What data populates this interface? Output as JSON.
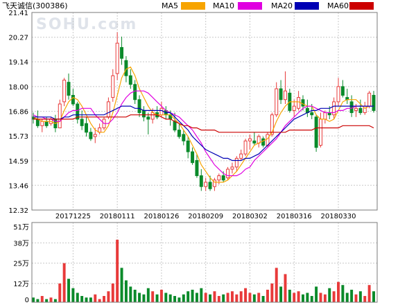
{
  "header": {
    "title": "飞天诚信(300386)"
  },
  "watermark": "SOHU.com",
  "colors": {
    "up": "#e83a3a",
    "down": "#0a8a2a",
    "grid": "#c8c8c8",
    "frame": "#7a7a7a",
    "ma5": "#f7a400",
    "ma10": "#e000e0",
    "ma20": "#0000b4",
    "ma60": "#cc0000"
  },
  "chart_data": [
    {
      "type": "candlestick",
      "title": "飞天诚信(300386)",
      "y_ticks": [
        "21.41",
        "20.27",
        "19.14",
        "18.00",
        "16.86",
        "15.73",
        "14.59",
        "13.46",
        "12.32"
      ],
      "ylim": [
        12.32,
        21.41
      ],
      "grid": true,
      "legend": [
        {
          "label": "MA5",
          "color": "#f7a400"
        },
        {
          "label": "MA10",
          "color": "#e000e0"
        },
        {
          "label": "MA20",
          "color": "#0000b4"
        },
        {
          "label": "MA60",
          "color": "#cc0000"
        }
      ],
      "x_ticks": [
        {
          "label": "20171225",
          "index": 9
        },
        {
          "label": "20180111",
          "index": 19
        },
        {
          "label": "20180126",
          "index": 29
        },
        {
          "label": "20180209",
          "index": 39
        },
        {
          "label": "20180302",
          "index": 49
        },
        {
          "label": "20180316",
          "index": 59
        },
        {
          "label": "20180330",
          "index": 69
        }
      ],
      "ohlc": [
        [
          16.6,
          16.8,
          16.3,
          16.5
        ],
        [
          16.5,
          16.9,
          16.1,
          16.2
        ],
        [
          16.2,
          16.5,
          15.9,
          16.4
        ],
        [
          16.4,
          16.6,
          16.1,
          16.2
        ],
        [
          16.3,
          16.6,
          16.2,
          16.5
        ],
        [
          16.5,
          16.7,
          15.9,
          16.1
        ],
        [
          16.1,
          17.4,
          16.1,
          17.2
        ],
        [
          17.3,
          18.4,
          17.1,
          18.3
        ],
        [
          18.2,
          18.6,
          17.4,
          17.6
        ],
        [
          17.6,
          17.9,
          17.1,
          17.2
        ],
        [
          17.2,
          17.3,
          16.3,
          16.5
        ],
        [
          16.5,
          16.9,
          16.0,
          16.2
        ],
        [
          16.3,
          16.6,
          15.7,
          15.9
        ],
        [
          15.9,
          16.1,
          15.5,
          15.6
        ],
        [
          15.7,
          16.1,
          15.4,
          15.8
        ],
        [
          15.9,
          16.3,
          15.8,
          16.1
        ],
        [
          16.1,
          16.6,
          16.0,
          16.5
        ],
        [
          16.6,
          17.5,
          16.5,
          17.3
        ],
        [
          17.5,
          18.8,
          17.3,
          18.5
        ],
        [
          18.6,
          20.5,
          18.3,
          20.0
        ],
        [
          19.8,
          20.3,
          19.0,
          19.3
        ],
        [
          19.2,
          19.4,
          18.2,
          18.5
        ],
        [
          18.5,
          18.8,
          17.9,
          18.1
        ],
        [
          18.1,
          18.3,
          17.2,
          17.4
        ],
        [
          17.4,
          17.6,
          16.6,
          16.8
        ],
        [
          16.9,
          17.1,
          16.4,
          16.6
        ],
        [
          16.6,
          16.8,
          15.8,
          16.5
        ],
        [
          16.5,
          17.0,
          16.3,
          16.8
        ],
        [
          16.8,
          17.1,
          16.5,
          16.6
        ],
        [
          16.7,
          17.3,
          16.6,
          17.0
        ],
        [
          16.9,
          17.1,
          16.5,
          16.7
        ],
        [
          16.7,
          16.9,
          16.2,
          16.5
        ],
        [
          16.4,
          16.8,
          15.9,
          16.0
        ],
        [
          16.0,
          16.3,
          15.6,
          15.7
        ],
        [
          15.8,
          16.0,
          15.3,
          15.5
        ],
        [
          15.5,
          15.7,
          14.7,
          15.0
        ],
        [
          15.0,
          15.2,
          14.4,
          14.5
        ],
        [
          14.6,
          14.9,
          13.8,
          13.9
        ],
        [
          13.9,
          14.2,
          13.2,
          13.4
        ],
        [
          13.4,
          13.8,
          13.2,
          13.6
        ],
        [
          13.6,
          13.9,
          13.2,
          13.3
        ],
        [
          13.4,
          13.8,
          13.2,
          13.7
        ],
        [
          13.7,
          14.0,
          13.5,
          13.9
        ],
        [
          13.9,
          14.1,
          13.6,
          13.7
        ],
        [
          13.8,
          14.3,
          13.7,
          14.2
        ],
        [
          14.2,
          14.5,
          14.0,
          14.3
        ],
        [
          14.3,
          14.8,
          14.1,
          14.7
        ],
        [
          14.7,
          15.1,
          14.6,
          14.9
        ],
        [
          14.9,
          15.6,
          14.8,
          15.5
        ],
        [
          15.5,
          15.8,
          15.1,
          15.6
        ],
        [
          15.5,
          15.9,
          15.3,
          15.4
        ],
        [
          15.4,
          15.8,
          15.2,
          15.7
        ],
        [
          15.6,
          15.7,
          15.2,
          15.3
        ],
        [
          15.3,
          15.9,
          15.2,
          15.8
        ],
        [
          15.8,
          16.8,
          15.7,
          16.7
        ],
        [
          16.7,
          18.2,
          16.6,
          17.9
        ],
        [
          17.9,
          18.3,
          17.2,
          17.4
        ],
        [
          17.4,
          18.7,
          17.2,
          17.8
        ],
        [
          17.7,
          17.9,
          16.8,
          16.9
        ],
        [
          16.9,
          17.4,
          16.6,
          17.1
        ],
        [
          17.0,
          17.8,
          16.9,
          17.5
        ],
        [
          17.4,
          17.6,
          16.9,
          17.1
        ],
        [
          17.0,
          17.4,
          16.6,
          16.8
        ],
        [
          16.8,
          17.2,
          16.5,
          16.7
        ],
        [
          16.6,
          16.7,
          15.0,
          15.2
        ],
        [
          15.3,
          16.8,
          15.2,
          16.5
        ],
        [
          16.5,
          16.9,
          16.3,
          16.8
        ],
        [
          16.8,
          17.1,
          16.5,
          16.7
        ],
        [
          16.7,
          17.5,
          16.5,
          17.3
        ],
        [
          17.3,
          18.4,
          17.1,
          18.0
        ],
        [
          18.0,
          18.3,
          17.5,
          17.6
        ],
        [
          17.5,
          17.9,
          17.2,
          17.4
        ],
        [
          17.3,
          17.6,
          16.6,
          16.8
        ],
        [
          16.9,
          17.2,
          16.6,
          17.0
        ],
        [
          17.0,
          17.4,
          16.7,
          16.8
        ],
        [
          16.8,
          17.3,
          16.7,
          17.1
        ],
        [
          17.1,
          17.8,
          17.0,
          17.7
        ],
        [
          17.6,
          17.8,
          16.8,
          16.9
        ]
      ],
      "series": [
        {
          "name": "MA5",
          "values": [
            16.6,
            16.5,
            16.4,
            16.4,
            16.4,
            16.3,
            16.4,
            16.9,
            17.3,
            17.5,
            17.4,
            17.1,
            16.7,
            16.3,
            16.0,
            15.9,
            15.9,
            16.2,
            16.8,
            17.6,
            18.4,
            18.8,
            18.9,
            18.5,
            17.9,
            17.5,
            17.1,
            16.8,
            16.7,
            16.7,
            16.7,
            16.7,
            16.5,
            16.3,
            16.0,
            15.7,
            15.3,
            14.9,
            14.4,
            14.1,
            13.8,
            13.6,
            13.6,
            13.6,
            13.7,
            13.9,
            14.1,
            14.4,
            14.7,
            15.0,
            15.3,
            15.4,
            15.5,
            15.6,
            15.9,
            16.4,
            16.8,
            17.1,
            17.3,
            17.3,
            17.3,
            17.2,
            17.1,
            17.1,
            16.7,
            16.5,
            16.5,
            16.4,
            16.5,
            16.9,
            17.3,
            17.4,
            17.4,
            17.4,
            17.2,
            17.0,
            17.1,
            17.1
          ]
        },
        {
          "name": "MA10",
          "values": [
            16.7,
            16.6,
            16.6,
            16.5,
            16.5,
            16.4,
            16.4,
            16.6,
            16.8,
            16.9,
            16.9,
            17.0,
            17.0,
            17.0,
            16.7,
            16.5,
            16.3,
            16.3,
            16.5,
            16.8,
            17.2,
            17.5,
            17.7,
            17.8,
            17.8,
            17.8,
            17.7,
            17.5,
            17.3,
            17.1,
            16.9,
            16.8,
            16.7,
            16.6,
            16.4,
            16.2,
            16.0,
            15.7,
            15.4,
            15.0,
            14.7,
            14.4,
            14.2,
            14.0,
            13.9,
            13.9,
            13.9,
            14.0,
            14.2,
            14.3,
            14.6,
            14.8,
            15.0,
            15.2,
            15.4,
            15.6,
            15.9,
            16.2,
            16.4,
            16.6,
            16.8,
            17.0,
            17.1,
            17.1,
            17.0,
            16.9,
            16.8,
            16.8,
            16.8,
            16.9,
            16.9,
            17.0,
            17.0,
            17.1,
            17.1,
            17.1,
            17.1,
            17.1
          ]
        },
        {
          "name": "MA20",
          "values": [
            16.6,
            16.6,
            16.6,
            16.6,
            16.6,
            16.5,
            16.5,
            16.6,
            16.6,
            16.7,
            16.7,
            16.7,
            16.7,
            16.7,
            16.7,
            16.7,
            16.7,
            16.8,
            16.9,
            17.0,
            17.1,
            17.1,
            17.1,
            17.0,
            17.0,
            16.9,
            16.9,
            16.9,
            16.9,
            16.9,
            16.8,
            16.8,
            16.6,
            16.4,
            16.2,
            16.0,
            15.7,
            15.5,
            15.3,
            15.1,
            15.0,
            14.9,
            14.8,
            14.7,
            14.7,
            14.6,
            14.6,
            14.6,
            14.7,
            14.7,
            14.8,
            14.9,
            15.1,
            15.3,
            15.5,
            15.7,
            15.9,
            16.1,
            16.3,
            16.5,
            16.6,
            16.7,
            16.8,
            16.9,
            16.9,
            17.0,
            17.0,
            17.0,
            17.1,
            17.1,
            17.1,
            17.1,
            17.1,
            17.1,
            17.1,
            17.1,
            17.1,
            17.1
          ]
        },
        {
          "name": "MA60",
          "values": [
            16.5,
            16.5,
            16.5,
            16.5,
            16.5,
            16.5,
            16.5,
            16.5,
            16.5,
            16.5,
            16.6,
            16.6,
            16.6,
            16.6,
            16.6,
            16.6,
            16.6,
            16.6,
            16.6,
            16.6,
            16.6,
            16.6,
            16.7,
            16.7,
            16.7,
            16.7,
            16.7,
            16.7,
            16.7,
            16.6,
            16.5,
            16.5,
            16.4,
            16.3,
            16.2,
            16.2,
            16.1,
            16.1,
            16.0,
            16.0,
            16.0,
            16.0,
            15.9,
            15.9,
            15.9,
            15.9,
            15.9,
            15.9,
            15.9,
            15.9,
            15.9,
            15.9,
            15.9,
            15.9,
            15.9,
            15.9,
            15.9,
            15.9,
            16.0,
            16.0,
            16.0,
            16.0,
            16.0,
            16.0,
            16.1,
            16.1,
            16.1,
            16.1,
            16.1,
            16.1,
            16.2,
            16.2,
            16.2,
            16.2,
            16.2,
            16.2,
            16.2,
            16.1
          ]
        }
      ]
    },
    {
      "type": "bar",
      "y_ticks": [
        "51万",
        "38万",
        "25万",
        "12万",
        "0"
      ],
      "ylim": [
        0,
        51
      ],
      "unit": "万",
      "values": [
        3,
        2,
        4,
        2,
        3,
        2,
        12,
        25,
        15,
        9,
        6,
        4,
        3,
        3,
        5,
        2,
        4,
        7,
        12,
        40,
        22,
        14,
        10,
        8,
        6,
        5,
        9,
        7,
        5,
        8,
        6,
        5,
        4,
        3,
        5,
        7,
        8,
        6,
        9,
        6,
        5,
        7,
        4,
        5,
        6,
        7,
        5,
        7,
        9,
        6,
        5,
        6,
        4,
        8,
        12,
        22,
        10,
        18,
        8,
        6,
        7,
        5,
        6,
        4,
        10,
        6,
        5,
        9,
        7,
        13,
        11,
        6,
        8,
        5,
        7,
        4,
        11,
        7
      ]
    }
  ]
}
